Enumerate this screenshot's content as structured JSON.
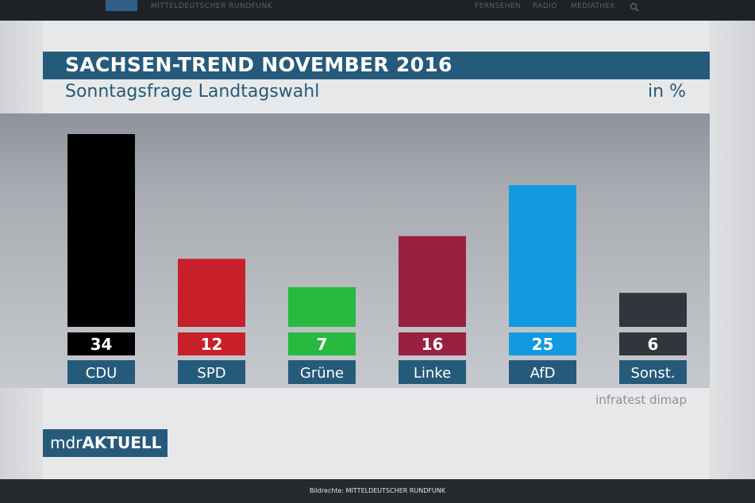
{
  "site": {
    "name": "MITTELDEUTSCHER RUNDFUNK",
    "nav": [
      "FERNSEHEN",
      "RADIO",
      "MEDIATHEK"
    ]
  },
  "colors": {
    "header": "#265a7a",
    "CDU": "#000000",
    "SPD": "#c8202a",
    "Grüne": "#27b940",
    "Linke": "#9a2040",
    "AfD": "#119ae0",
    "Sonst.": "#33353c"
  },
  "logo": {
    "pre": "mdr",
    "post": "AKTUELL"
  },
  "credit": "Bildrechte: MITTELDEUTSCHER RUNDFUNK",
  "chart_data": {
    "type": "bar",
    "title": "SACHSEN-TREND NOVEMBER 2016",
    "subtitle": "Sonntagsfrage Landtagswahl",
    "unit": "in %",
    "categories": [
      "CDU",
      "SPD",
      "Grüne",
      "Linke",
      "AfD",
      "Sonst."
    ],
    "values": [
      34,
      12,
      7,
      16,
      25,
      6
    ],
    "source": "infratest dimap",
    "grid": false,
    "legend": "none"
  }
}
